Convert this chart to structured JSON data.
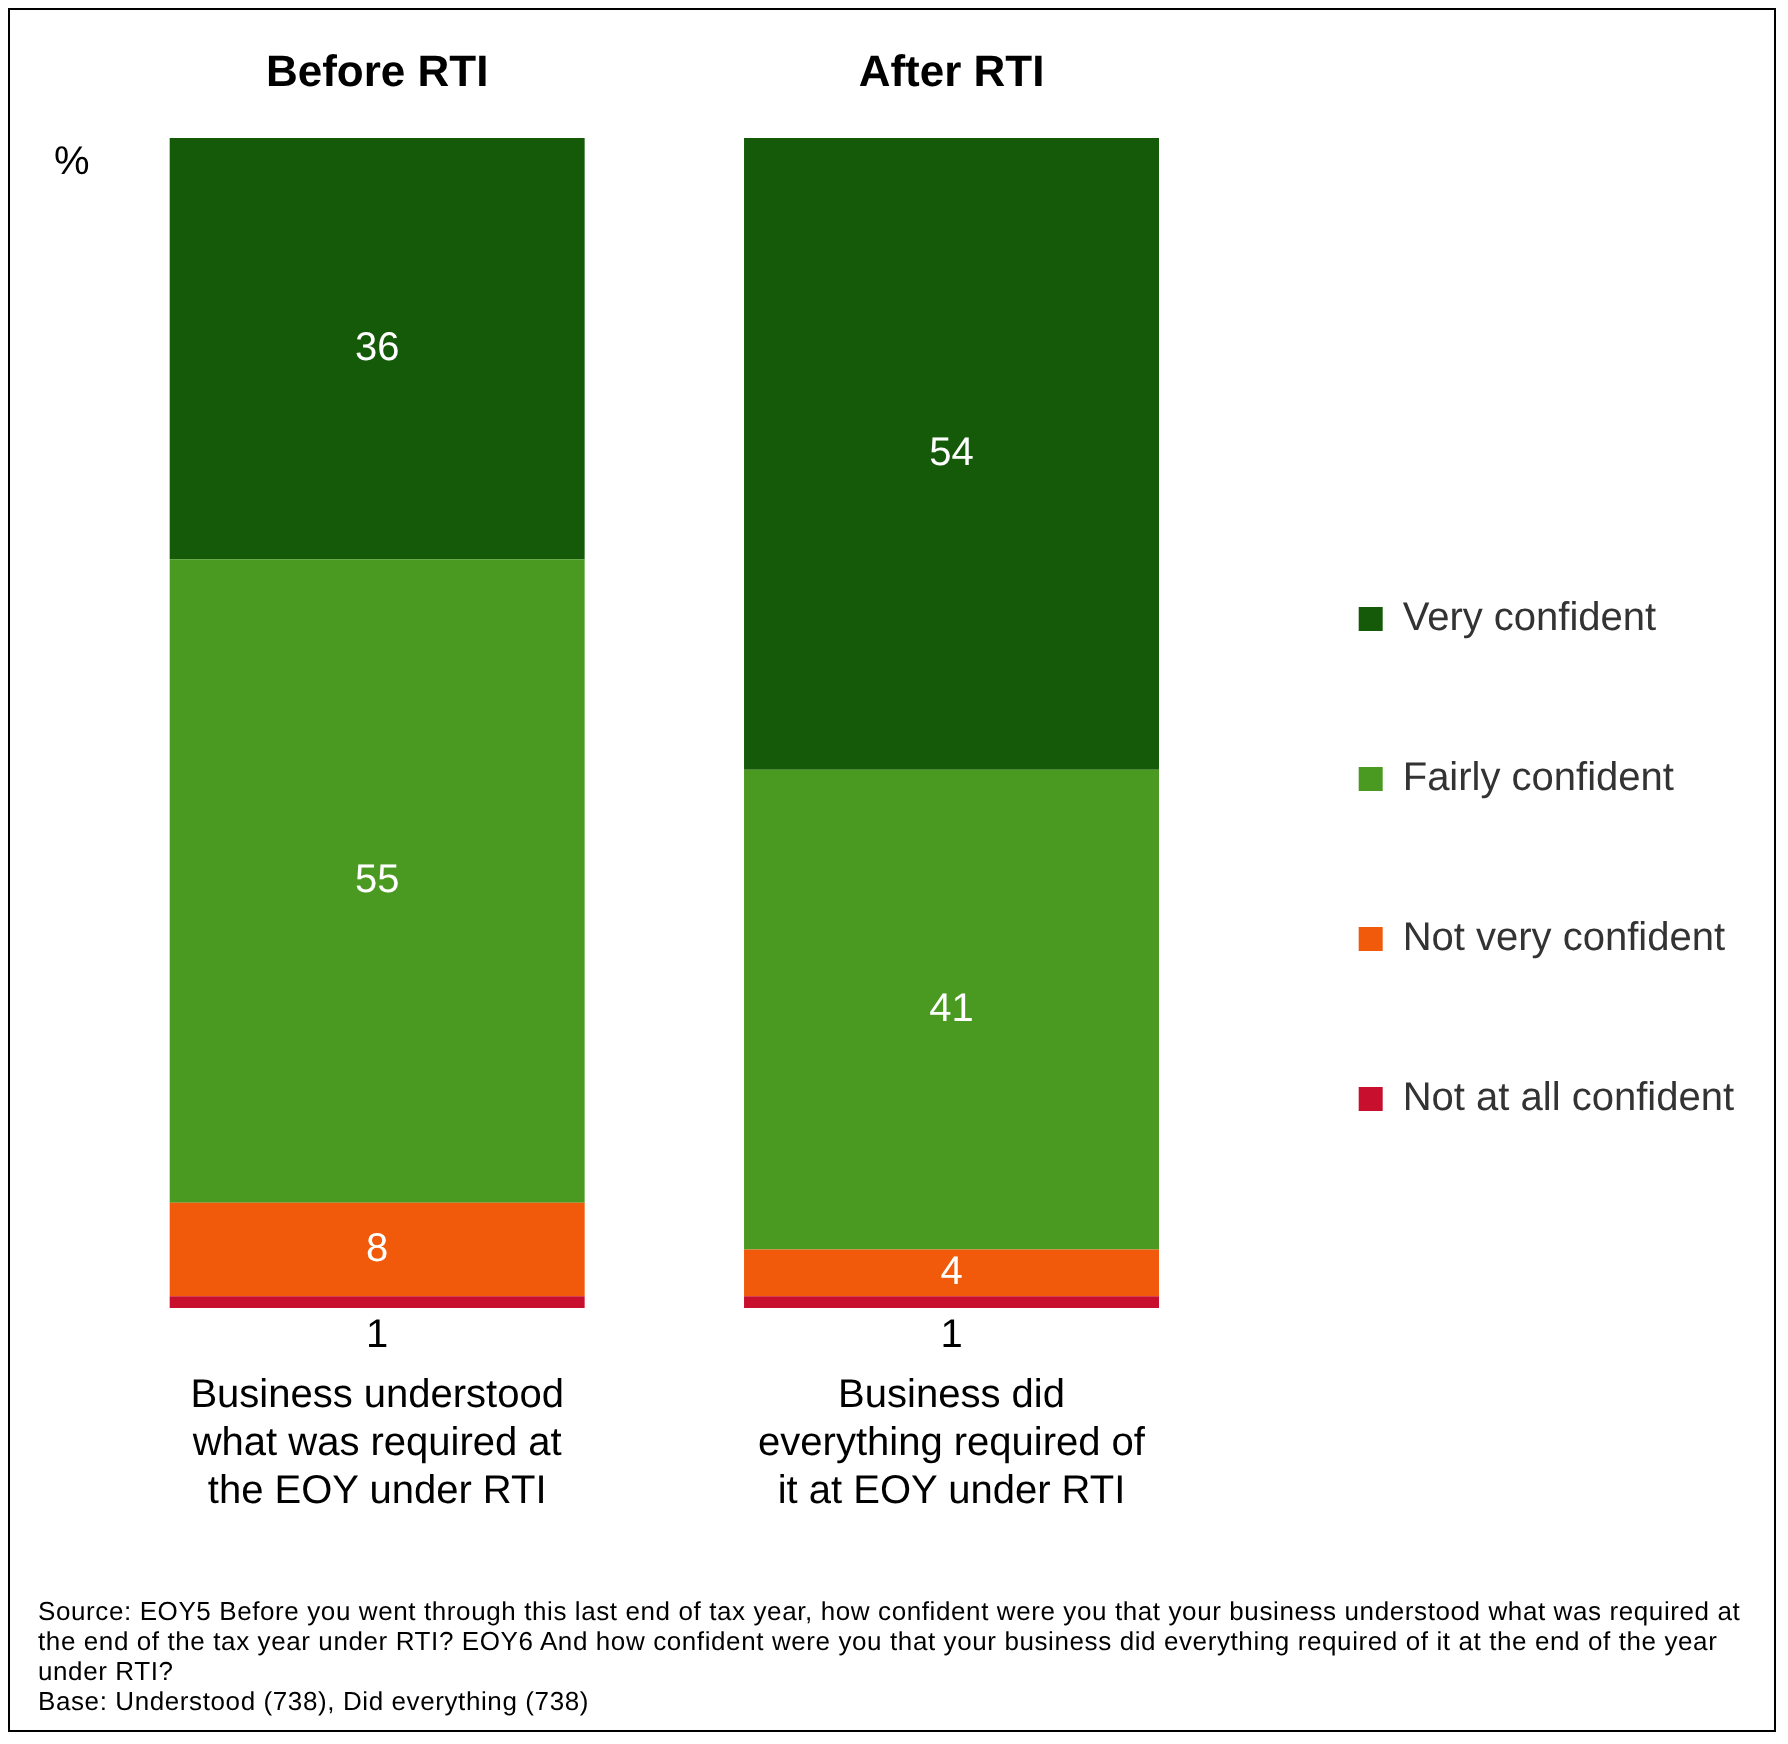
{
  "chart_data": {
    "type": "bar",
    "stacked": true,
    "ylabel": "%",
    "categories": [
      "Business understood what was required at the EOY under RTI",
      "Business did everything required of it at EOY under RTI"
    ],
    "series": [
      {
        "name": "Not at all confident",
        "color": "#c8102e",
        "values": [
          1,
          1
        ]
      },
      {
        "name": "Not very confident",
        "color": "#f05a0a",
        "values": [
          8,
          4
        ]
      },
      {
        "name": "Fairly confident",
        "color": "#4a9a22",
        "values": [
          55,
          41
        ]
      },
      {
        "name": "Very confident",
        "color": "#155a08",
        "values": [
          36,
          54
        ]
      }
    ],
    "data_labels": true,
    "legend": "right",
    "grid": false,
    "annotations": [
      "Before RTI",
      "After RTI",
      "Source: EOY5 Before you went through this last end of tax year, how confident were you that your business understood what was required at the end of the tax year under RTI? EOY6 And how confident were you that your business did everything required of it at the end of the year under RTI?",
      "Base: Understood (738), Did everything (738)"
    ]
  }
}
